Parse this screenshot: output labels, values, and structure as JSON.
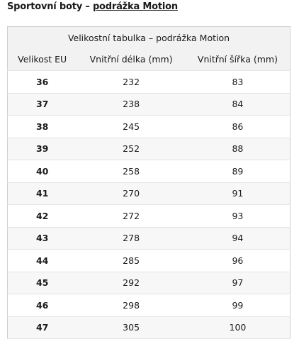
{
  "header": {
    "title": "Sportovní boty – ",
    "link": "podrážka Motion"
  },
  "table": {
    "caption": "Velikostní tabulka – podrážka Motion",
    "columns": [
      "Velikost EU",
      "Vnitřní délka (mm)",
      "Vnitřní šířka (mm)"
    ],
    "rows": [
      [
        36,
        232,
        83
      ],
      [
        37,
        238,
        84
      ],
      [
        38,
        245,
        86
      ],
      [
        39,
        252,
        88
      ],
      [
        40,
        258,
        89
      ],
      [
        41,
        270,
        91
      ],
      [
        42,
        272,
        93
      ],
      [
        43,
        278,
        94
      ],
      [
        44,
        285,
        96
      ],
      [
        45,
        292,
        97
      ],
      [
        46,
        298,
        99
      ],
      [
        47,
        305,
        100
      ]
    ]
  }
}
